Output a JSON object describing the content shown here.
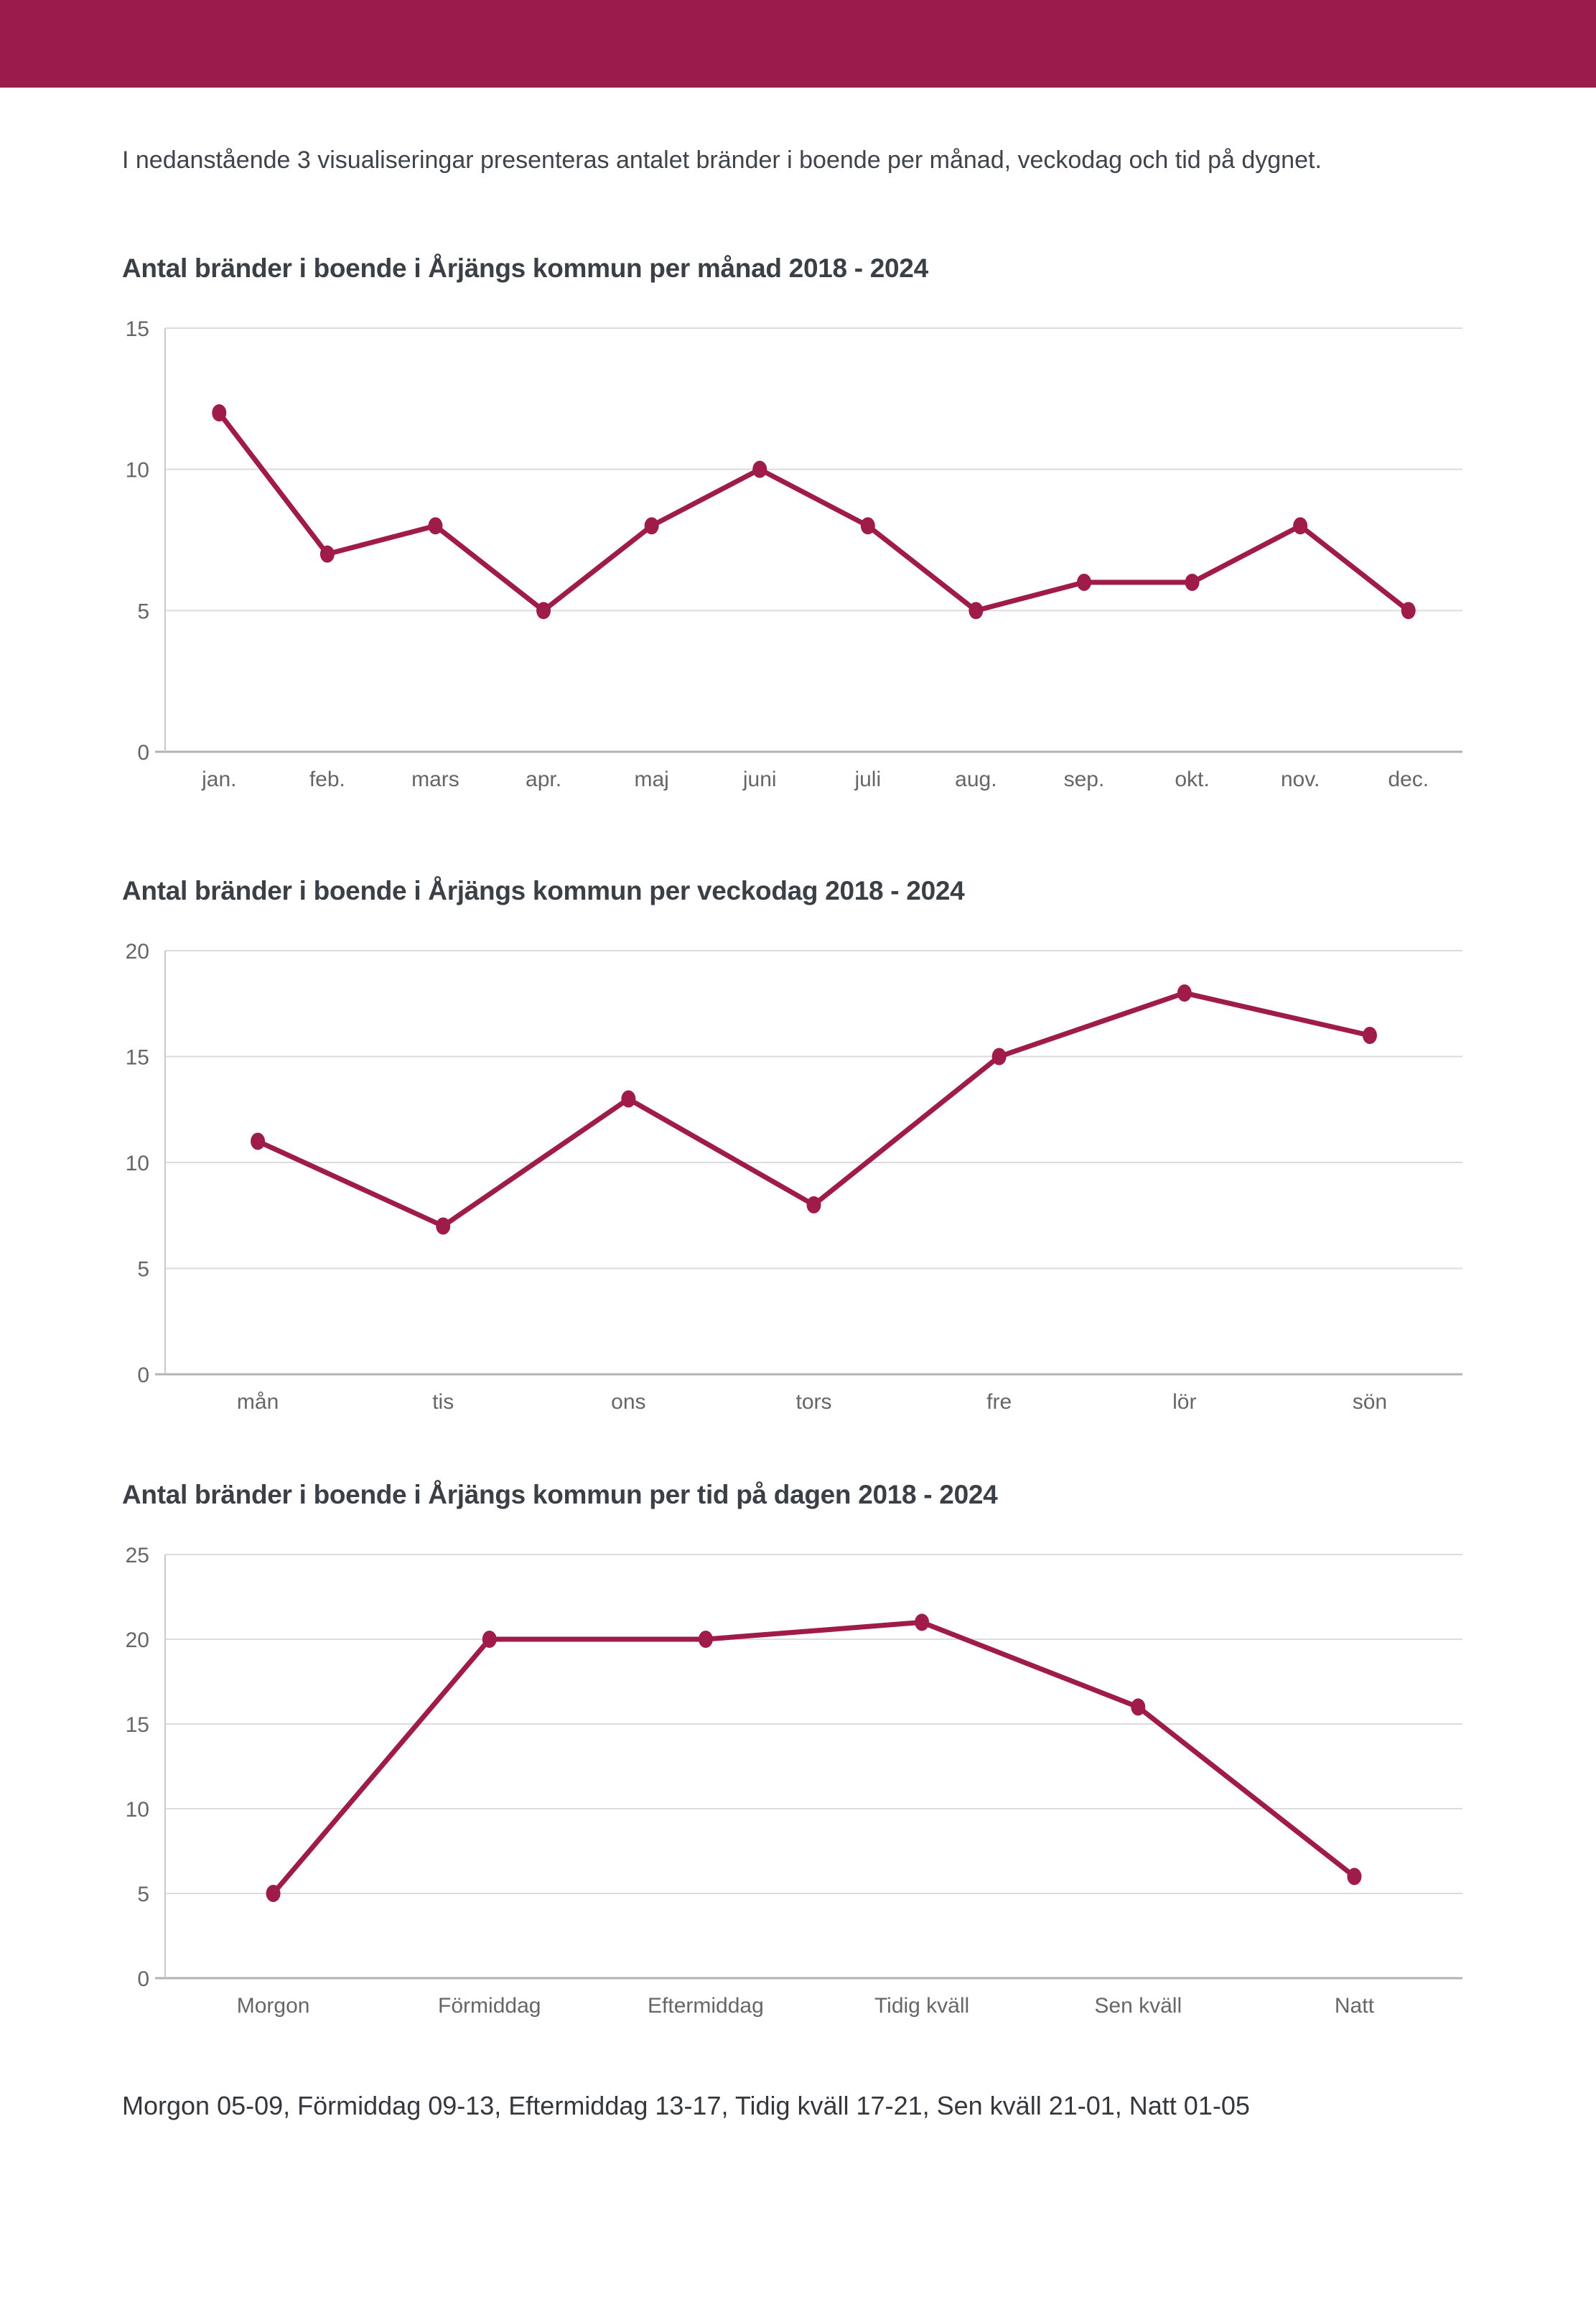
{
  "page": {
    "intro": "I nedanstående 3 visualiseringar presenteras antalet bränder i boende per månad, veckodag och tid på dygnet.",
    "footnote": "Morgon 05-09, Förmiddag 09-13, Eftermiddag 13-17, Tidig kväll 17-21, Sen kväll 21-01, Natt 01-05"
  },
  "colors": {
    "header_bar": "#9b1b4d",
    "line": "#9e1b4a",
    "grid": "#dcdcdc",
    "axis_bottom": "#b3b3b3",
    "axis_left": "#c9c9c9",
    "tick_text": "#666666",
    "body_text": "#3d4145"
  },
  "chart_data": [
    {
      "type": "line",
      "title": "Antal bränder i boende i Årjängs kommun per månad 2018 - 2024",
      "categories": [
        "jan.",
        "feb.",
        "mars",
        "apr.",
        "maj",
        "juni",
        "juli",
        "aug.",
        "sep.",
        "okt.",
        "nov.",
        "dec."
      ],
      "values": [
        12,
        7,
        8,
        5,
        8,
        10,
        8,
        5,
        6,
        6,
        8,
        5
      ],
      "xlabel": "",
      "ylabel": "",
      "ylim": [
        0,
        15
      ],
      "yticks": [
        0,
        5,
        10,
        15
      ],
      "grid": true,
      "legend": "none"
    },
    {
      "type": "line",
      "title": "Antal bränder i boende i Årjängs kommun per veckodag 2018 - 2024",
      "categories": [
        "mån",
        "tis",
        "ons",
        "tors",
        "fre",
        "lör",
        "sön"
      ],
      "values": [
        11,
        7,
        13,
        8,
        15,
        18,
        16
      ],
      "xlabel": "",
      "ylabel": "",
      "ylim": [
        0,
        20
      ],
      "yticks": [
        0,
        5,
        10,
        15,
        20
      ],
      "grid": true,
      "legend": "none"
    },
    {
      "type": "line",
      "title": "Antal bränder i boende i Årjängs kommun per tid på dagen 2018 - 2024",
      "categories": [
        "Morgon",
        "Förmiddag",
        "Eftermiddag",
        "Tidig kväll",
        "Sen kväll",
        "Natt"
      ],
      "values": [
        5,
        20,
        20,
        21,
        16,
        6
      ],
      "xlabel": "",
      "ylabel": "",
      "ylim": [
        0,
        25
      ],
      "yticks": [
        0,
        5,
        10,
        15,
        20,
        25
      ],
      "grid": true,
      "legend": "none"
    }
  ]
}
